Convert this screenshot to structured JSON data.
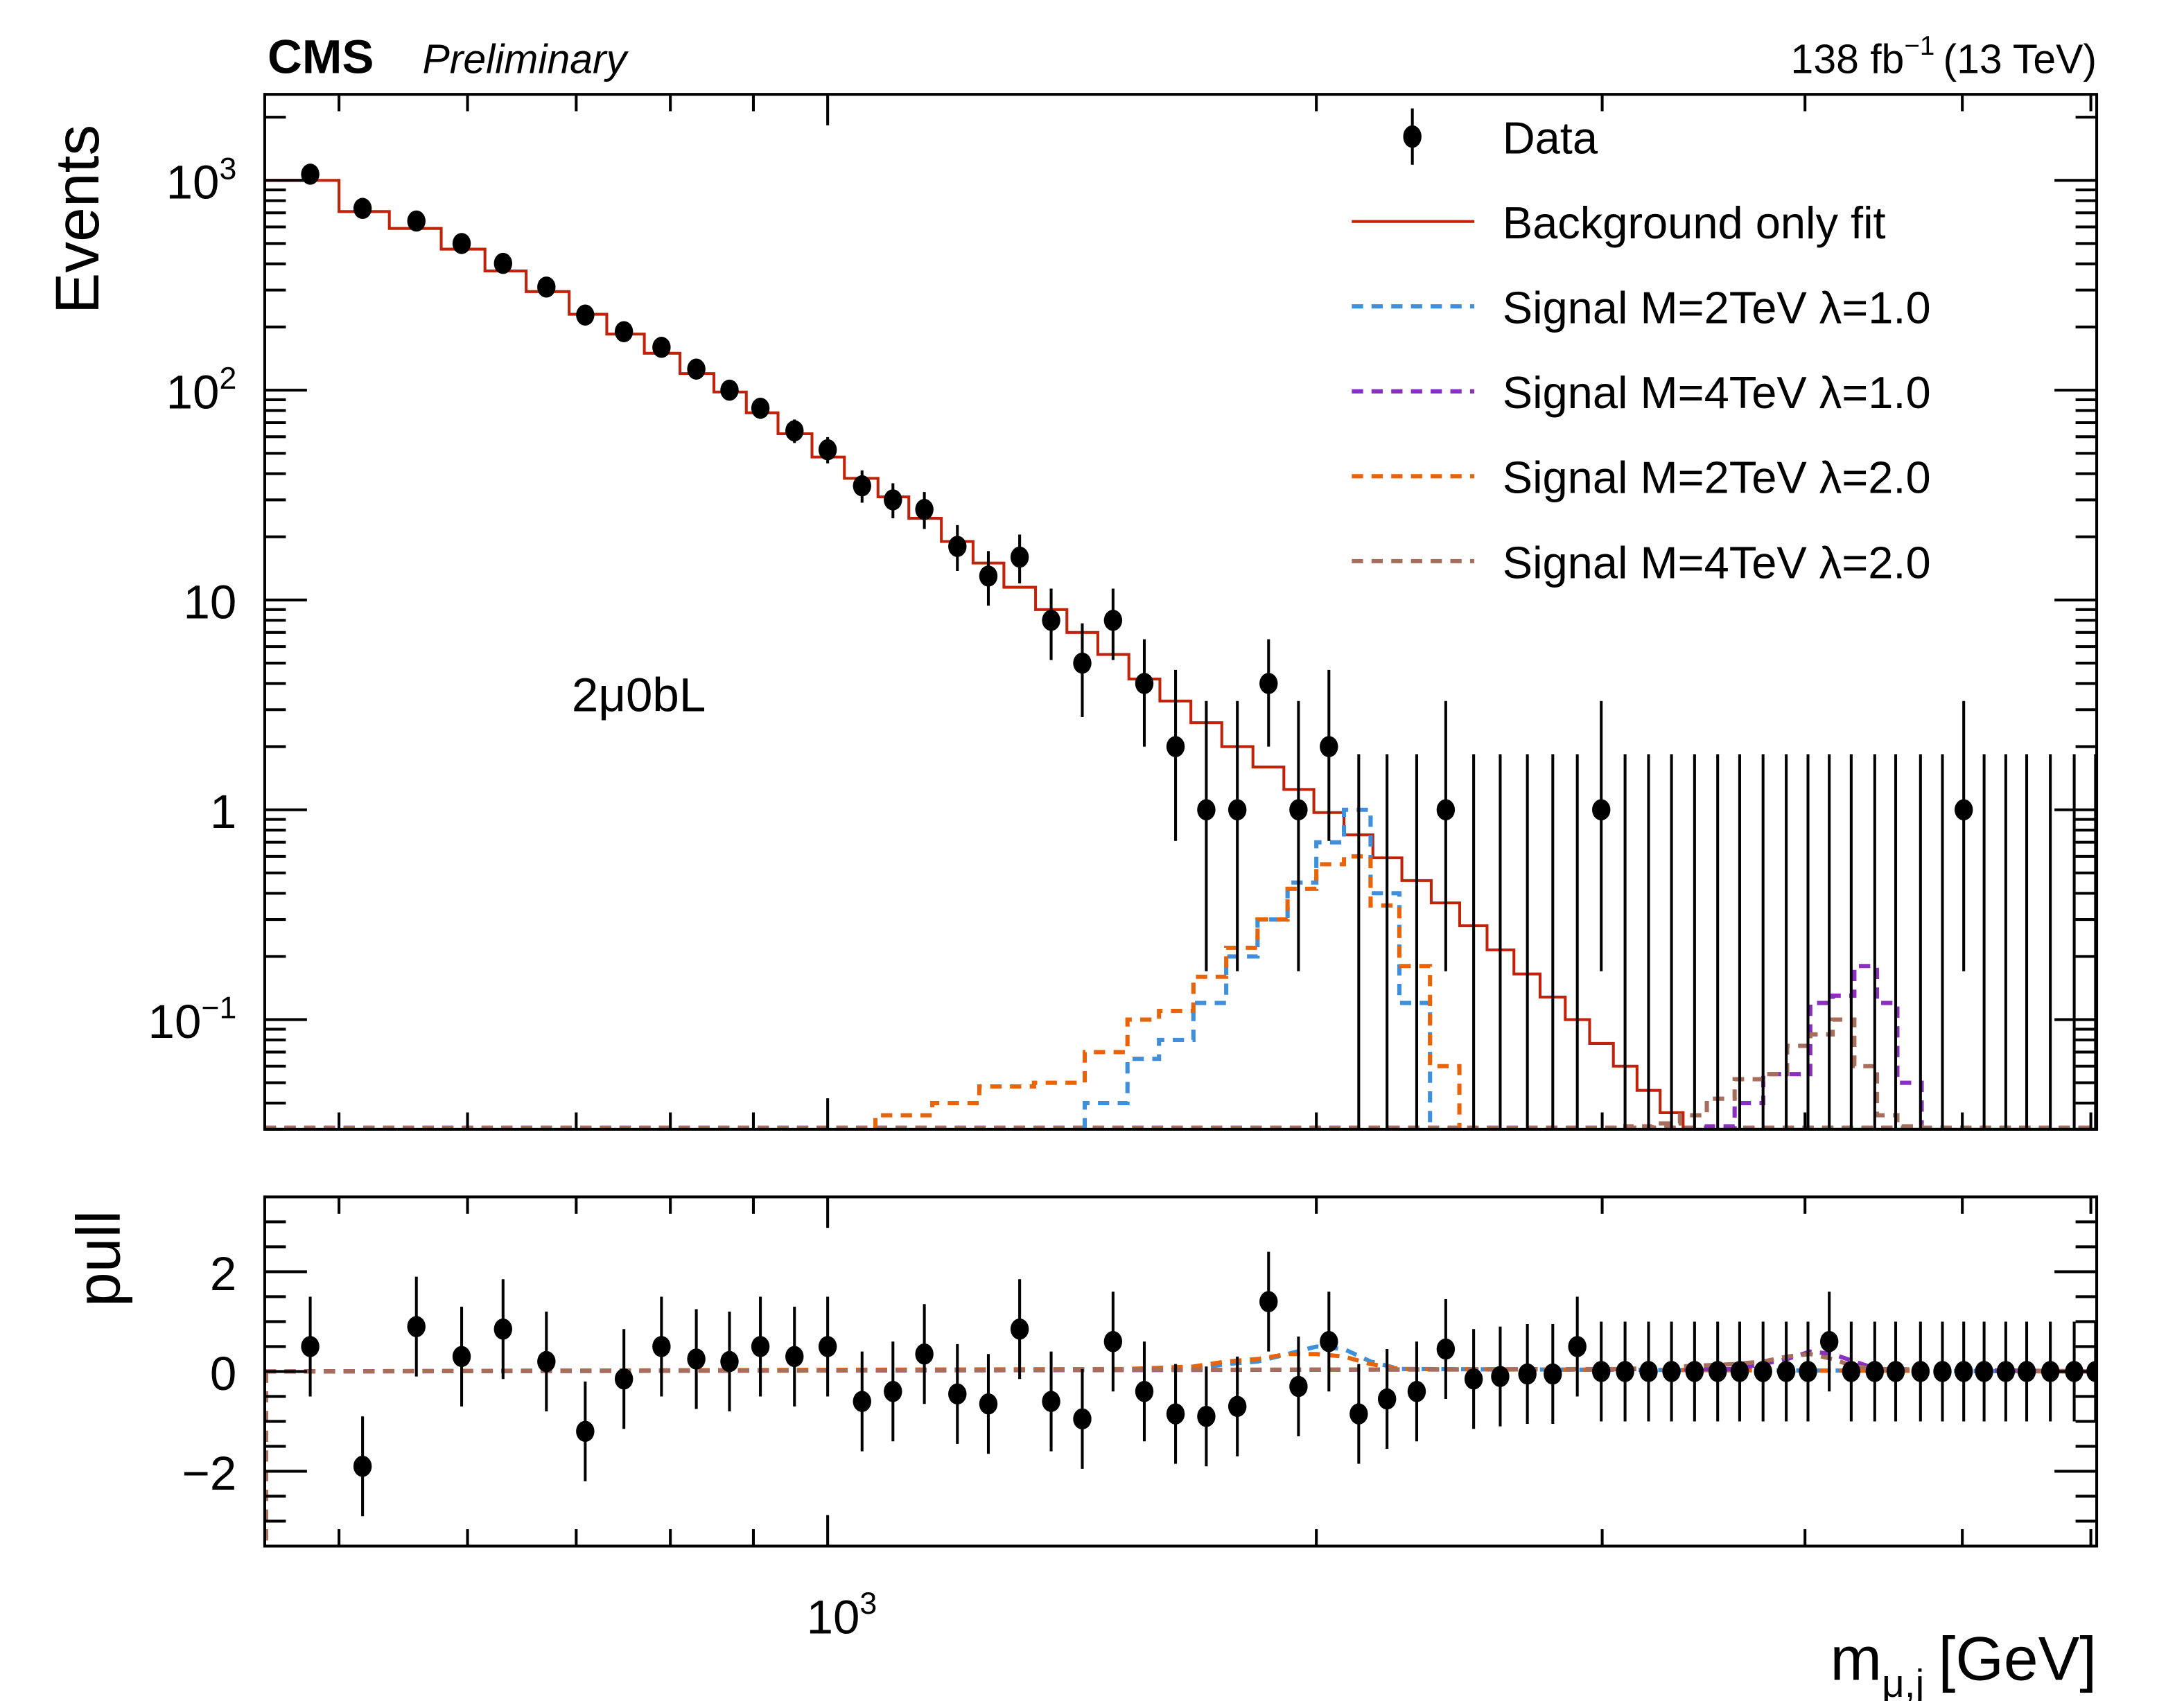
{
  "header": {
    "experiment": "CMS",
    "status": "Preliminary",
    "lumi_text": "138 fb",
    "lumi_exp": "−1",
    "energy_text": "(13 TeV)"
  },
  "annotation": "2μ0bL",
  "chart_data": [
    {
      "type": "line",
      "panel": "main",
      "title": "",
      "xlabel": "m",
      "xlabel_sub": "μ,j",
      "xlabel_unit": "[GeV]",
      "ylabel": "Events",
      "xscale": "log",
      "yscale": "log",
      "xlim": [
        450,
        6050
      ],
      "ylim": [
        0.03,
        2570
      ],
      "grid": false,
      "legend_position": "top-right",
      "y_tick_labels": [
        {
          "value": 1000,
          "base": "10",
          "exp": "3"
        },
        {
          "value": 100,
          "base": "10",
          "exp": "2"
        },
        {
          "value": 10,
          "base": "10",
          "exp": ""
        },
        {
          "value": 1,
          "base": "1",
          "exp": ""
        },
        {
          "value": 0.1,
          "base": "10",
          "exp": "−1"
        }
      ],
      "x_tick_labels": [
        {
          "value": 1000,
          "base": "10",
          "exp": "3"
        }
      ],
      "legend": [
        {
          "label": "Data",
          "style": "marker",
          "color": "#000000"
        },
        {
          "label": "Background only fit",
          "style": "solid",
          "color": "#c0220a"
        },
        {
          "label": "Signal M=2TeV λ=1.0",
          "style": "dashed",
          "color": "#3f8fdb"
        },
        {
          "label": "Signal M=4TeV λ=1.0",
          "style": "dashed",
          "color": "#8a2fc0"
        },
        {
          "label": "Signal M=2TeV λ=2.0",
          "style": "dashed",
          "color": "#e8640a"
        },
        {
          "label": "Signal M=4TeV λ=2.0",
          "style": "dashed",
          "color": "#a86e5c"
        }
      ],
      "data_points": {
        "x": [
          480,
          517,
          558,
          595,
          631,
          671,
          709,
          749,
          790,
          830,
          870,
          909,
          954,
          1000,
          1050,
          1097,
          1147,
          1202,
          1256,
          1313,
          1373,
          1435,
          1499,
          1567,
          1638,
          1711,
          1788,
          1869,
          1950,
          2036,
          2124,
          2211,
          2306,
          2403,
          2500,
          2596,
          2698,
          2797,
          2896,
          2996,
          3099,
          3204,
          3310,
          3420,
          3534,
          3646,
          3769,
          3895,
          4017,
          4140,
          4271,
          4416,
          4549,
          4712,
          4861,
          5010,
          5157,
          5318,
          5478,
          5665,
          5860,
          6040
        ],
        "y": [
          1070,
          735,
          640,
          500,
          402,
          310,
          228,
          190,
          160,
          126,
          100,
          82,
          64,
          52,
          35,
          30,
          27,
          18,
          13,
          16,
          8,
          5,
          8,
          4,
          2,
          1,
          1,
          4,
          1,
          2,
          0,
          0,
          0,
          1,
          0,
          0,
          0,
          0,
          0,
          1,
          0,
          0,
          0,
          0,
          0,
          0,
          0,
          0,
          0,
          0,
          0,
          0,
          0,
          0,
          0,
          1,
          0,
          0,
          0,
          0,
          0,
          0
        ]
      },
      "background_fit": {
        "bin_edges": [
          450,
          500,
          537,
          578,
          615,
          652,
          693,
          731,
          771,
          811,
          851,
          891,
          932,
          978,
          1024,
          1074,
          1122,
          1175,
          1229,
          1284,
          1343,
          1404,
          1467,
          1533,
          1602,
          1674,
          1749,
          1828,
          1910,
          1993,
          2080,
          2167,
          2258,
          2354,
          2451,
          2548,
          2647,
          2747,
          2847,
          2947,
          3048,
          3152,
          3257,
          3365,
          3477,
          3590,
          3708,
          3832,
          3956,
          4078,
          4206,
          4343,
          4483,
          4630,
          4787,
          4936,
          5084,
          5238,
          5398,
          5572,
          5763,
          5950,
          6050
        ],
        "values": [
          1000,
          710,
          590,
          470,
          370,
          295,
          230,
          185,
          150,
          120,
          98,
          78,
          62,
          48,
          38,
          31,
          24.5,
          19,
          15,
          11.5,
          9,
          7,
          5.5,
          4.2,
          3.3,
          2.6,
          2.0,
          1.6,
          1.25,
          0.97,
          0.76,
          0.59,
          0.46,
          0.36,
          0.28,
          0.215,
          0.165,
          0.128,
          0.1,
          0.077,
          0.06,
          0.046,
          0.036,
          0.028,
          0.028,
          0.028,
          0.028,
          0.028,
          0.028,
          0.028,
          0.028,
          0.028,
          0.028,
          0.028,
          0.028,
          0.028,
          0.028,
          0.028,
          0.028,
          0.028,
          0.028,
          0.028
        ]
      },
      "signals": [
        {
          "name": "Signal M=2TeV λ=1.0",
          "color": "#3f8fdb",
          "bin_edges": [
            1440,
            1530,
            1600,
            1680,
            1760,
            1840,
            1920,
            2000,
            2080,
            2160,
            2250,
            2350
          ],
          "values": [
            0.04,
            0.065,
            0.08,
            0.12,
            0.2,
            0.3,
            0.45,
            0.7,
            1.0,
            0.4,
            0.12,
            0.03
          ]
        },
        {
          "name": "Signal M=2TeV λ=2.0",
          "color": "#e8640a",
          "bin_edges": [
            1070,
            1160,
            1240,
            1340,
            1440,
            1530,
            1600,
            1680,
            1760,
            1840,
            1920,
            2000,
            2080,
            2160,
            2250,
            2350,
            2450
          ],
          "values": [
            0.035,
            0.04,
            0.048,
            0.05,
            0.07,
            0.1,
            0.11,
            0.16,
            0.22,
            0.3,
            0.42,
            0.55,
            0.6,
            0.35,
            0.18,
            0.06,
            0.035
          ]
        },
        {
          "name": "Signal M=4TeV λ=1.0",
          "color": "#8a2fc0",
          "bin_edges": [
            3480,
            3620,
            3770,
            3900,
            4030,
            4160,
            4290,
            4430,
            4560,
            4720
          ],
          "values": [
            0.031,
            0.04,
            0.055,
            0.055,
            0.12,
            0.13,
            0.18,
            0.12,
            0.05,
            0.031
          ]
        },
        {
          "name": "Signal M=4TeV λ=2.0",
          "color": "#a86e5c",
          "bin_edges": [
            3100,
            3220,
            3350,
            3480,
            3620,
            3770,
            3900,
            4030,
            4160,
            4290,
            4430,
            4560,
            4720
          ],
          "values": [
            0.031,
            0.032,
            0.035,
            0.042,
            0.052,
            0.055,
            0.075,
            0.085,
            0.1,
            0.06,
            0.035,
            0.031,
            0.031
          ]
        }
      ]
    },
    {
      "type": "scatter",
      "panel": "pull",
      "ylabel": "pull",
      "xscale": "log",
      "xlim": [
        450,
        6050
      ],
      "ylim": [
        -3.5,
        3.5
      ],
      "y_tick_labels": [
        "2",
        "0",
        "−2"
      ],
      "y_tick_values": [
        2,
        0,
        -2
      ],
      "x": [
        480,
        517,
        558,
        595,
        631,
        671,
        709,
        749,
        790,
        830,
        870,
        909,
        954,
        1000,
        1050,
        1097,
        1147,
        1202,
        1256,
        1313,
        1373,
        1435,
        1499,
        1567,
        1638,
        1711,
        1788,
        1869,
        1950,
        2036,
        2124,
        2211,
        2306,
        2403,
        2500,
        2596,
        2698,
        2797,
        2896,
        2996,
        3099,
        3204,
        3310,
        3420,
        3534,
        3646,
        3769,
        3895,
        4017,
        4140,
        4271,
        4416,
        4549,
        4712,
        4861,
        5010,
        5157,
        5318,
        5478,
        5665,
        5860,
        6040
      ],
      "pull": [
        0.5,
        -1.9,
        0.9,
        0.3,
        0.85,
        0.2,
        -1.2,
        -0.15,
        0.5,
        0.25,
        0.2,
        0.5,
        0.3,
        0.5,
        -0.6,
        -0.4,
        0.35,
        -0.45,
        -0.65,
        0.85,
        -0.6,
        -0.95,
        0.6,
        -0.4,
        -0.85,
        -0.9,
        -0.7,
        1.4,
        -0.3,
        0.6,
        -0.85,
        -0.55,
        -0.4,
        0.45,
        -0.15,
        -0.1,
        -0.05,
        -0.05,
        0.5,
        0,
        0,
        0,
        0,
        0,
        0,
        0,
        0,
        0,
        0,
        0.6,
        0,
        0,
        0,
        0,
        0,
        0,
        0,
        0,
        0,
        0,
        0,
        0
      ],
      "pull_error": [
        1.0,
        1.0,
        1.0,
        1.0,
        1.0,
        1.0,
        1.0,
        1.0,
        1.0,
        1.0,
        1.0,
        1.0,
        1.0,
        1.0,
        1.0,
        1.0,
        1.0,
        1.0,
        1.0,
        1.0,
        1.0,
        1.0,
        1.0,
        1.0,
        1.0,
        1.0,
        1.0,
        1.0,
        1.0,
        1.0,
        1.0,
        1.0,
        1.0,
        1.0,
        1.0,
        1.0,
        1.0,
        1.0,
        1.0,
        1.0,
        1.0,
        1.0,
        1.0,
        1.0,
        1.0,
        1.0,
        1.0,
        1.0,
        1.0,
        1.0,
        1.0,
        1.0,
        1.0,
        1.0,
        1.0,
        1.0,
        1.0,
        1.0,
        1.0,
        1.0,
        1.0,
        1.0
      ],
      "signal_pulls": [
        {
          "name": "Signal M=2TeV λ=1.0",
          "color": "#3f8fdb",
          "x": [
            1680,
            1760,
            1840,
            1920,
            2000,
            2080,
            2160,
            2250
          ],
          "pull": [
            0.05,
            0.15,
            0.2,
            0.35,
            0.5,
            0.45,
            0.2,
            0.05
          ]
        },
        {
          "name": "Signal M=2TeV λ=2.0",
          "color": "#e8640a",
          "x": [
            1530,
            1680,
            1760,
            1840,
            1920,
            2000,
            2080,
            2160,
            2250
          ],
          "pull": [
            0.05,
            0.1,
            0.2,
            0.25,
            0.35,
            0.35,
            0.3,
            0.15,
            0.05
          ]
        },
        {
          "name": "Signal M=4TeV λ=1.0",
          "color": "#8a2fc0",
          "x": [
            3620,
            3770,
            3900,
            4030,
            4160,
            4290,
            4430
          ],
          "pull": [
            0.05,
            0.15,
            0.25,
            0.4,
            0.35,
            0.2,
            0.05
          ]
        },
        {
          "name": "Signal M=4TeV λ=2.0",
          "color": "#a86e5c",
          "x": [
            3100,
            3350,
            3620,
            3770,
            3900,
            4030,
            4160,
            4290,
            4430
          ],
          "pull": [
            0.05,
            0.1,
            0.15,
            0.2,
            0.3,
            0.35,
            0.25,
            0.1,
            0.05
          ]
        }
      ]
    }
  ]
}
